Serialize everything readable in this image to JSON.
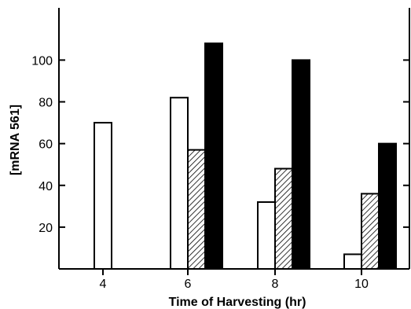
{
  "chart_data": {
    "type": "bar",
    "title": "",
    "xlabel": "Time of Harvesting (hr)",
    "ylabel": "[mRNA 561]",
    "ylim": [
      0,
      125
    ],
    "yticks": [
      20,
      40,
      60,
      80,
      100
    ],
    "grid": false,
    "legend": "none",
    "categories": [
      "4",
      "6",
      "8",
      "10"
    ],
    "series": [
      {
        "fill": "white",
        "values": [
          70,
          82,
          32,
          7
        ]
      },
      {
        "fill": "hatched",
        "values": [
          null,
          57,
          48,
          36
        ]
      },
      {
        "fill": "black",
        "values": [
          null,
          108,
          100,
          60
        ]
      }
    ]
  }
}
